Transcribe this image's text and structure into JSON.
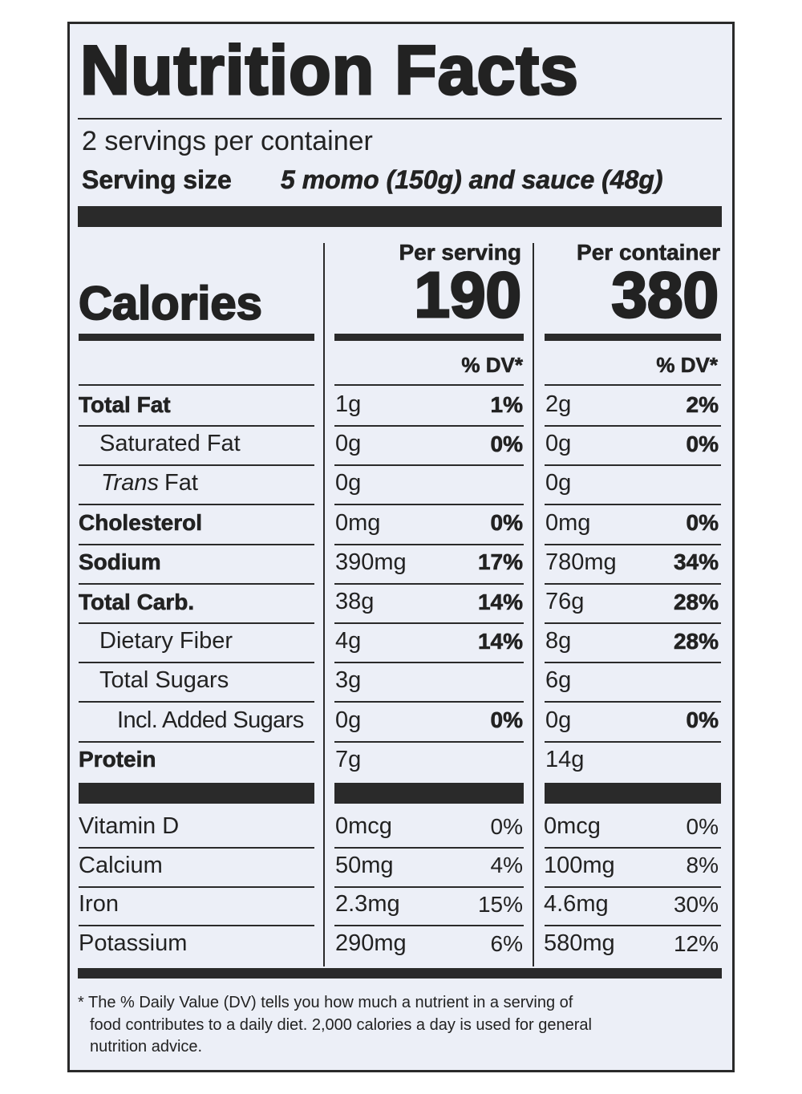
{
  "title": "Nutrition Facts",
  "servings": "2 servings per container",
  "serving_size": {
    "label": "Serving size",
    "value": "5 momo (150g) and sauce (48g)"
  },
  "calories": {
    "label": "Calories",
    "per_serving": {
      "header": "Per serving",
      "value": "190",
      "dv_header": "% DV*"
    },
    "per_container": {
      "header": "Per container",
      "value": "380",
      "dv_header": "% DV*"
    }
  },
  "nutrients": [
    {
      "name": "Total Fat",
      "serving_amount": "1g",
      "serving_dv": "1%",
      "container_amount": "2g",
      "container_dv": "2%"
    },
    {
      "name": "Saturated Fat",
      "serving_amount": "0g",
      "serving_dv": "0%",
      "container_amount": "0g",
      "container_dv": "0%"
    },
    {
      "name_italic": "Trans",
      "name": "Fat",
      "serving_amount": "0g",
      "container_amount": "0g"
    },
    {
      "name": "Cholesterol",
      "serving_amount": "0mg",
      "serving_dv": "0%",
      "container_amount": "0mg",
      "container_dv": "0%"
    },
    {
      "name": "Sodium",
      "serving_amount": "390mg",
      "serving_dv": "17%",
      "container_amount": "780mg",
      "container_dv": "34%"
    },
    {
      "name": "Total Carb.",
      "serving_amount": "38g",
      "serving_dv": "14%",
      "container_amount": "76g",
      "container_dv": "28%"
    },
    {
      "name": "Dietary Fiber",
      "serving_amount": "4g",
      "serving_dv": "14%",
      "container_amount": "8g",
      "container_dv": "28%"
    },
    {
      "name": "Total Sugars",
      "serving_amount": "3g",
      "container_amount": "6g"
    },
    {
      "name": "Incl. Added Sugars",
      "serving_amount": "0g",
      "serving_dv": "0%",
      "container_amount": "0g",
      "container_dv": "0%"
    },
    {
      "name": "Protein",
      "serving_amount": "7g",
      "container_amount": "14g"
    }
  ],
  "vitamins": [
    {
      "name": "Vitamin D",
      "serving_amount": "0mcg",
      "serving_dv": "0%",
      "container_amount": "0mcg",
      "container_dv": "0%"
    },
    {
      "name": "Calcium",
      "serving_amount": "50mg",
      "serving_dv": "4%",
      "container_amount": "100mg",
      "container_dv": "8%"
    },
    {
      "name": "Iron",
      "serving_amount": "2.3mg",
      "serving_dv": "15%",
      "container_amount": "4.6mg",
      "container_dv": "30%"
    },
    {
      "name": "Potassium",
      "serving_amount": "290mg",
      "serving_dv": "6%",
      "container_amount": "580mg",
      "container_dv": "12%"
    }
  ],
  "footnote": [
    "* The % Daily Value (DV) tells you how much a nutrient in a serving of",
    "food contributes to a daily diet. 2,000 calories a day is used for general",
    "nutrition advice."
  ]
}
